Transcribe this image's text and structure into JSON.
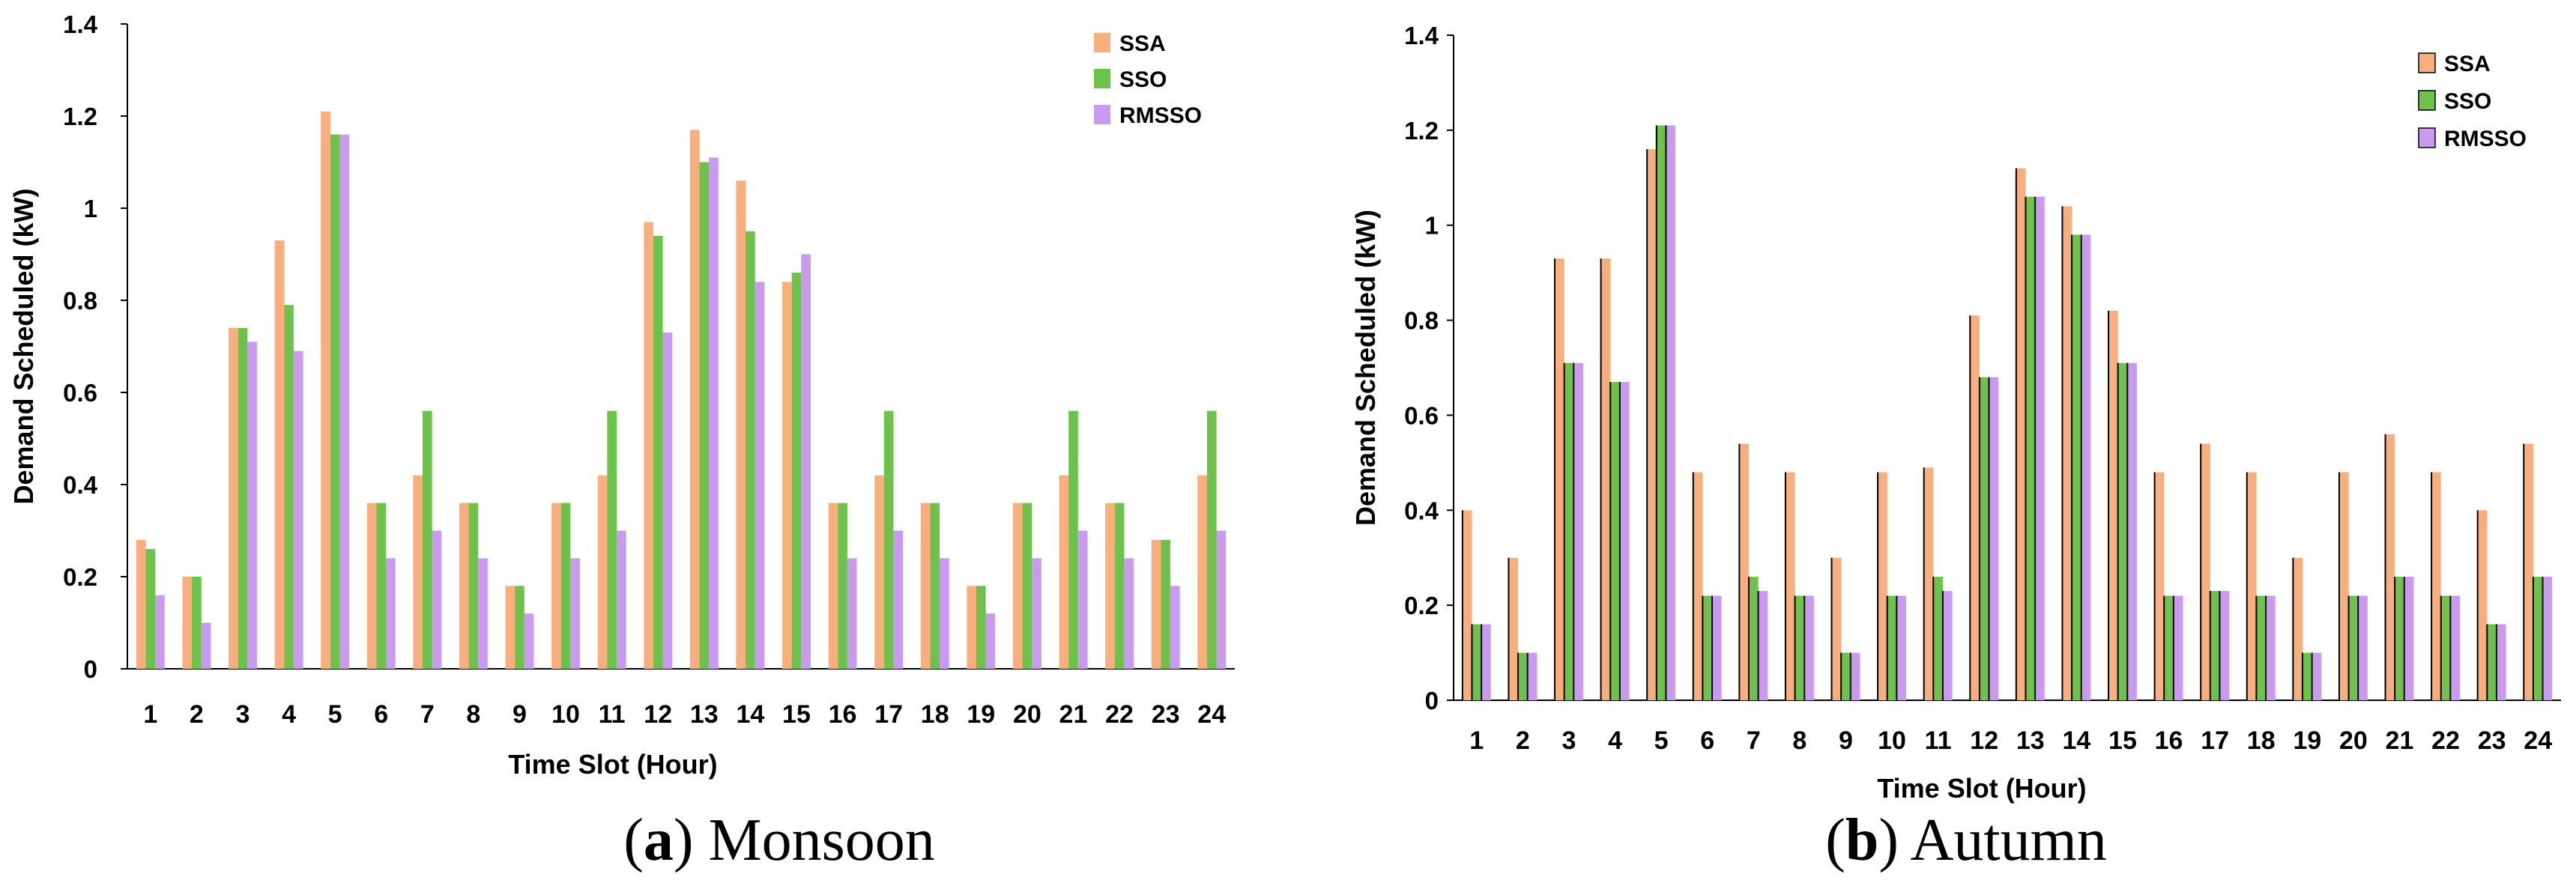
{
  "chart_data": [
    {
      "type": "bar",
      "title": "",
      "xlabel": "Time Slot (Hour)",
      "ylabel": "Demand Scheduled (kW)",
      "ylim": [
        0,
        1.4
      ],
      "yticks": [
        "0",
        "0.2",
        "0.4",
        "0.6",
        "0.8",
        "1",
        "1.2",
        "1.4"
      ],
      "legend_position": "top-right",
      "caption_letter": "a",
      "caption_rest": ") Monsoon",
      "caption_open": "(",
      "categories": [
        "1",
        "2",
        "3",
        "4",
        "5",
        "6",
        "7",
        "8",
        "9",
        "10",
        "11",
        "12",
        "13",
        "14",
        "15",
        "16",
        "17",
        "18",
        "19",
        "20",
        "21",
        "22",
        "23",
        "24"
      ],
      "series": [
        {
          "name": "SSA",
          "color": "#F9AE7D",
          "values": [
            0.28,
            0.2,
            0.74,
            0.93,
            1.21,
            0.36,
            0.42,
            0.36,
            0.18,
            0.36,
            0.42,
            0.97,
            1.17,
            1.06,
            0.84,
            0.36,
            0.42,
            0.36,
            0.18,
            0.36,
            0.42,
            0.36,
            0.28,
            0.42
          ]
        },
        {
          "name": "SSO",
          "color": "#6CC24A",
          "values": [
            0.26,
            0.2,
            0.74,
            0.79,
            1.16,
            0.36,
            0.56,
            0.36,
            0.18,
            0.36,
            0.56,
            0.94,
            1.1,
            0.95,
            0.86,
            0.36,
            0.56,
            0.36,
            0.18,
            0.36,
            0.56,
            0.36,
            0.28,
            0.56
          ]
        },
        {
          "name": "RMSSO",
          "color": "#C99AF0",
          "values": [
            0.16,
            0.1,
            0.71,
            0.69,
            1.16,
            0.24,
            0.3,
            0.24,
            0.12,
            0.24,
            0.3,
            0.73,
            1.11,
            0.84,
            0.9,
            0.24,
            0.3,
            0.24,
            0.12,
            0.24,
            0.3,
            0.24,
            0.18,
            0.3
          ]
        }
      ]
    },
    {
      "type": "bar",
      "title": "",
      "xlabel": "Time Slot (Hour)",
      "ylabel": "Demand Scheduled (kW)",
      "ylim": [
        0,
        1.4
      ],
      "yticks": [
        "0",
        "0.2",
        "0.4",
        "0.6",
        "0.8",
        "1",
        "1.2",
        "1.4"
      ],
      "legend_position": "top-right",
      "caption_letter": "b",
      "caption_rest": ") Autumn",
      "caption_open": "(",
      "categories": [
        "1",
        "2",
        "3",
        "4",
        "5",
        "6",
        "7",
        "8",
        "9",
        "10",
        "11",
        "12",
        "13",
        "14",
        "15",
        "16",
        "17",
        "18",
        "19",
        "20",
        "21",
        "22",
        "23",
        "24"
      ],
      "series": [
        {
          "name": "SSA",
          "color": "#F9AE7D",
          "values": [
            0.4,
            0.3,
            0.93,
            0.93,
            1.16,
            0.48,
            0.54,
            0.48,
            0.3,
            0.48,
            0.49,
            0.81,
            1.12,
            1.04,
            0.82,
            0.48,
            0.54,
            0.48,
            0.3,
            0.48,
            0.56,
            0.48,
            0.4,
            0.54
          ]
        },
        {
          "name": "SSO",
          "color": "#6CC24A",
          "values": [
            0.16,
            0.1,
            0.71,
            0.67,
            1.21,
            0.22,
            0.26,
            0.22,
            0.1,
            0.22,
            0.26,
            0.68,
            1.06,
            0.98,
            0.71,
            0.22,
            0.23,
            0.22,
            0.1,
            0.22,
            0.26,
            0.22,
            0.16,
            0.26
          ]
        },
        {
          "name": "RMSSO",
          "color": "#C99AF0",
          "values": [
            0.16,
            0.1,
            0.71,
            0.67,
            1.21,
            0.22,
            0.23,
            0.22,
            0.1,
            0.22,
            0.23,
            0.68,
            1.06,
            0.98,
            0.71,
            0.22,
            0.23,
            0.22,
            0.1,
            0.22,
            0.26,
            0.22,
            0.16,
            0.26
          ]
        }
      ]
    }
  ]
}
